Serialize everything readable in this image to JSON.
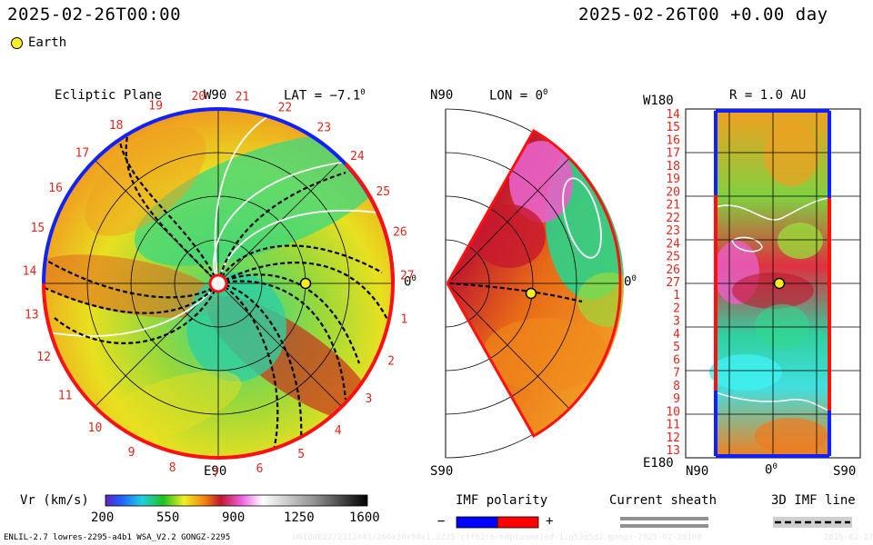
{
  "header": {
    "left_timestamp": "2025-02-26T00:00",
    "right_timestamp": "2025-02-26T00 +0.00 day"
  },
  "legend": {
    "earth_label": "Earth",
    "earth_color": "#ffee22"
  },
  "ecliptic_panel": {
    "title": "Ecliptic Plane",
    "top_label": "W90",
    "bottom_label": "E90",
    "right_label": "0",
    "right_label_sup": "0",
    "latitude_label": "LAT = −7.1",
    "latitude_sup": "0",
    "carrington_ticks": [
      "20",
      "21",
      "22",
      "23",
      "24",
      "25",
      "26",
      "27",
      "1",
      "2",
      "3",
      "4",
      "5",
      "6",
      "7",
      "8",
      "9",
      "10",
      "11",
      "12",
      "13",
      "14",
      "15",
      "16",
      "17",
      "18",
      "19"
    ]
  },
  "meridional_panel": {
    "top_label": "N90",
    "bottom_label": "S90",
    "title": "LON = 0",
    "title_sup": "0",
    "right_label": "0",
    "right_label_sup": "0"
  },
  "sphere_panel": {
    "title": "R = 1.0 AU",
    "top_left_label": "W180",
    "bottom_left_label": "E180",
    "x_left_label": "N90",
    "x_mid_label": "0",
    "x_mid_sup": "0",
    "x_right_label": "S90",
    "row_ticks": [
      "14",
      "15",
      "16",
      "17",
      "18",
      "19",
      "20",
      "21",
      "22",
      "23",
      "24",
      "25",
      "26",
      "27",
      "1",
      "2",
      "3",
      "4",
      "5",
      "6",
      "7",
      "8",
      "9",
      "10",
      "11",
      "12",
      "13"
    ]
  },
  "colorbar": {
    "label": "Vr (km/s)",
    "tick_labels": [
      "200",
      "550",
      "900",
      "1250",
      "1600"
    ],
    "min": 200,
    "max": 1600
  },
  "imf_polarity": {
    "label": "IMF polarity",
    "minus": "−",
    "plus": "+",
    "negative_color": "#0000ff",
    "positive_color": "#ff0000"
  },
  "current_sheath": {
    "label": "Current sheath"
  },
  "imf_line": {
    "label": "3D IMF line"
  },
  "footer": {
    "model_info": "ENLIL-2.7 lowres-2295-a4b1 WSA_V2.2 GONGZ-2295",
    "run_id": "UNIQUE2272312443/266x30x90x1.2235-cff61f6-noplusmnled-1.g53q5d2.gongz-2025-02-28100",
    "date_tag": "2025-02-27"
  }
}
